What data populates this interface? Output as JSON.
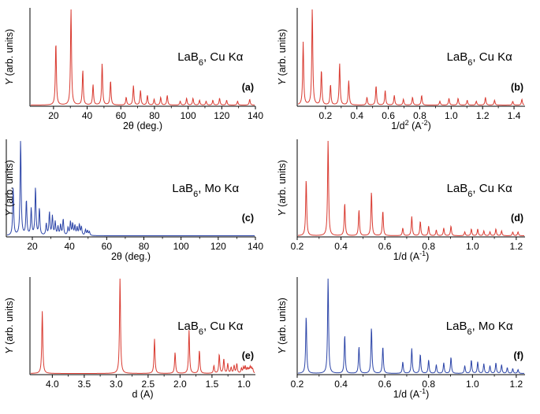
{
  "chart_data": [
    {
      "id": "a",
      "type": "line",
      "color": "#d93a30",
      "panel_label": "(a)",
      "annotation": {
        "main": "LaB",
        "sub": "6",
        "rest": ", Cu Kα"
      },
      "xlabel": {
        "main": "2θ (deg.)",
        "sup": ""
      },
      "ylabel": {
        "italic": "Y",
        "rest": " (arb. units)"
      },
      "xlim": [
        6,
        140
      ],
      "ylim": [
        0,
        1
      ],
      "xticks": [
        20,
        40,
        60,
        80,
        100,
        120,
        140
      ],
      "xtick_labels": [
        "20",
        "40",
        "60",
        "80",
        "100",
        "120",
        "140"
      ],
      "series": [
        {
          "peaks": [
            [
              21.4,
              0.65
            ],
            [
              30.4,
              1.0
            ],
            [
              37.4,
              0.36
            ],
            [
              43.5,
              0.21
            ],
            [
              48.9,
              0.43
            ],
            [
              53.9,
              0.25
            ],
            [
              63.2,
              0.08
            ],
            [
              67.5,
              0.2
            ],
            [
              71.7,
              0.15
            ],
            [
              75.8,
              0.1
            ],
            [
              79.8,
              0.06
            ],
            [
              83.7,
              0.08
            ],
            [
              87.6,
              0.1
            ],
            [
              95.3,
              0.04
            ],
            [
              99.1,
              0.07
            ],
            [
              102.9,
              0.07
            ],
            [
              106.8,
              0.05
            ],
            [
              110.7,
              0.04
            ],
            [
              114.7,
              0.05
            ],
            [
              118.7,
              0.07
            ],
            [
              122.9,
              0.05
            ],
            [
              129.4,
              0.04
            ],
            [
              136.6,
              0.06
            ]
          ]
        }
      ]
    },
    {
      "id": "b",
      "type": "line",
      "color": "#d93a30",
      "panel_label": "(b)",
      "annotation": {
        "main": "LaB",
        "sub": "6",
        "rest": ", Cu Kα"
      },
      "xlabel": {
        "main": "1/d",
        "sup": "2",
        "tail": " (A",
        "sup2": "-2",
        "end": ")"
      },
      "ylabel": {
        "italic": "Y",
        "rest": " (arb. units)"
      },
      "xlim": [
        0.02,
        1.47
      ],
      "ylim": [
        0,
        1
      ],
      "xticks": [
        0.2,
        0.4,
        0.6,
        0.8,
        1.0,
        1.2,
        1.4
      ],
      "xtick_labels": [
        "0.2",
        "0.4",
        "0.6",
        "0.8",
        "1.0",
        "1.2",
        "1.4"
      ],
      "series": [
        {
          "peaks": [
            [
              0.058,
              0.65
            ],
            [
              0.116,
              1.0
            ],
            [
              0.174,
              0.36
            ],
            [
              0.232,
              0.21
            ],
            [
              0.29,
              0.43
            ],
            [
              0.348,
              0.25
            ],
            [
              0.464,
              0.08
            ],
            [
              0.522,
              0.2
            ],
            [
              0.58,
              0.15
            ],
            [
              0.638,
              0.1
            ],
            [
              0.696,
              0.06
            ],
            [
              0.754,
              0.08
            ],
            [
              0.812,
              0.1
            ],
            [
              0.928,
              0.04
            ],
            [
              0.986,
              0.07
            ],
            [
              1.044,
              0.07
            ],
            [
              1.102,
              0.05
            ],
            [
              1.16,
              0.04
            ],
            [
              1.218,
              0.08
            ],
            [
              1.276,
              0.05
            ],
            [
              1.392,
              0.04
            ],
            [
              1.45,
              0.06
            ]
          ]
        }
      ]
    },
    {
      "id": "c",
      "type": "line",
      "color": "#2c45a8",
      "panel_label": "(c)",
      "annotation": {
        "main": "LaB",
        "sub": "6",
        "rest": ", Mo Kα"
      },
      "xlabel": {
        "main": "2θ (deg.)",
        "sup": ""
      },
      "ylabel": {
        "italic": "Y",
        "rest": " (arb. units)"
      },
      "xlim": [
        6,
        140
      ],
      "ylim": [
        0,
        1
      ],
      "xticks": [
        20,
        40,
        60,
        80,
        100,
        120,
        140
      ],
      "xtick_labels": [
        "20",
        "40",
        "60",
        "80",
        "100",
        "120",
        "140"
      ],
      "series": [
        {
          "peaks": [
            [
              9.7,
              0.5
            ],
            [
              13.7,
              1.0
            ],
            [
              16.8,
              0.37
            ],
            [
              19.4,
              0.28
            ],
            [
              21.7,
              0.5
            ],
            [
              23.8,
              0.28
            ],
            [
              27.5,
              0.12
            ],
            [
              29.2,
              0.24
            ],
            [
              30.8,
              0.2
            ],
            [
              32.3,
              0.14
            ],
            [
              33.8,
              0.09
            ],
            [
              35.2,
              0.11
            ],
            [
              36.6,
              0.17
            ],
            [
              39.2,
              0.08
            ],
            [
              40.5,
              0.14
            ],
            [
              41.7,
              0.12
            ],
            [
              42.9,
              0.1
            ],
            [
              44.1,
              0.08
            ],
            [
              45.3,
              0.11
            ],
            [
              46.4,
              0.09
            ],
            [
              48.6,
              0.06
            ],
            [
              49.7,
              0.05
            ],
            [
              50.7,
              0.04
            ]
          ]
        }
      ]
    },
    {
      "id": "d",
      "type": "line",
      "color": "#d93a30",
      "panel_label": "(d)",
      "annotation": {
        "main": "LaB",
        "sub": "6",
        "rest": ", Cu Kα"
      },
      "xlabel": {
        "main": "1/d",
        "sup": "",
        "tail": " (A",
        "sup2": "-1",
        "end": ")"
      },
      "ylabel": {
        "italic": "Y",
        "rest": " (arb. units)"
      },
      "xlim": [
        0.2,
        1.24
      ],
      "ylim": [
        0,
        1
      ],
      "xticks": [
        0.2,
        0.4,
        0.6,
        0.8,
        1.0,
        1.2
      ],
      "xtick_labels": [
        "0.2",
        "0.4",
        "0.6",
        "0.8",
        "1.0",
        "1.2"
      ],
      "series": [
        {
          "peaks": [
            [
              0.241,
              0.59
            ],
            [
              0.341,
              1.0
            ],
            [
              0.417,
              0.34
            ],
            [
              0.482,
              0.27
            ],
            [
              0.539,
              0.46
            ],
            [
              0.591,
              0.26
            ],
            [
              0.682,
              0.08
            ],
            [
              0.723,
              0.2
            ],
            [
              0.762,
              0.15
            ],
            [
              0.8,
              0.1
            ],
            [
              0.835,
              0.06
            ],
            [
              0.869,
              0.08
            ],
            [
              0.902,
              0.1
            ],
            [
              0.965,
              0.04
            ],
            [
              0.995,
              0.07
            ],
            [
              1.024,
              0.07
            ],
            [
              1.052,
              0.05
            ],
            [
              1.08,
              0.04
            ],
            [
              1.107,
              0.07
            ],
            [
              1.133,
              0.05
            ],
            [
              1.184,
              0.04
            ],
            [
              1.208,
              0.04
            ]
          ]
        }
      ]
    },
    {
      "id": "e",
      "type": "line",
      "color": "#d93a30",
      "panel_label": "(e)",
      "annotation": {
        "main": "LaB",
        "sub": "6",
        "rest": ", Cu Kα"
      },
      "xlabel": {
        "main": "d (A)",
        "sup": ""
      },
      "ylabel": {
        "italic": "Y",
        "rest": " (arb. units)"
      },
      "xlim": [
        4.35,
        0.82
      ],
      "ylim": [
        0,
        1
      ],
      "xticks": [
        4.0,
        3.5,
        3.0,
        2.5,
        2.0,
        1.5,
        1.0
      ],
      "xtick_labels": [
        "4.0",
        "3.5",
        "3.0",
        "2.5",
        "2.0",
        "1.5",
        "1.0"
      ],
      "series": [
        {
          "peaks": [
            [
              4.157,
              0.65
            ],
            [
              2.94,
              1.0
            ],
            [
              2.4,
              0.36
            ],
            [
              2.078,
              0.22
            ],
            [
              1.859,
              0.45
            ],
            [
              1.697,
              0.24
            ],
            [
              1.47,
              0.08
            ],
            [
              1.386,
              0.2
            ],
            [
              1.315,
              0.15
            ],
            [
              1.253,
              0.1
            ],
            [
              1.2,
              0.06
            ],
            [
              1.153,
              0.08
            ],
            [
              1.111,
              0.1
            ],
            [
              1.039,
              0.05
            ],
            [
              1.007,
              0.06
            ],
            [
              0.98,
              0.07
            ],
            [
              0.95,
              0.05
            ],
            [
              0.926,
              0.04
            ],
            [
              0.903,
              0.06
            ],
            [
              0.882,
              0.05
            ],
            [
              0.862,
              0.04
            ]
          ]
        }
      ]
    },
    {
      "id": "f",
      "type": "line",
      "color": "#2c45a8",
      "panel_label": "(f)",
      "annotation": {
        "main": "LaB",
        "sub": "6",
        "rest": ", Mo Kα"
      },
      "xlabel": {
        "main": "1/d",
        "sup": "",
        "tail": " (A",
        "sup2": "-1",
        "end": ")"
      },
      "ylabel": {
        "italic": "Y",
        "rest": " (arb. units)"
      },
      "xlim": [
        0.2,
        1.24
      ],
      "ylim": [
        0,
        1
      ],
      "xticks": [
        0.2,
        0.4,
        0.6,
        0.8,
        1.0,
        1.2
      ],
      "xtick_labels": [
        "0.2",
        "0.4",
        "0.6",
        "0.8",
        "1.0",
        "1.2"
      ],
      "series": [
        {
          "peaks": [
            [
              0.241,
              0.6
            ],
            [
              0.341,
              1.0
            ],
            [
              0.417,
              0.4
            ],
            [
              0.482,
              0.28
            ],
            [
              0.539,
              0.48
            ],
            [
              0.591,
              0.28
            ],
            [
              0.682,
              0.12
            ],
            [
              0.723,
              0.26
            ],
            [
              0.762,
              0.2
            ],
            [
              0.8,
              0.14
            ],
            [
              0.835,
              0.09
            ],
            [
              0.869,
              0.11
            ],
            [
              0.902,
              0.17
            ],
            [
              0.965,
              0.08
            ],
            [
              0.995,
              0.14
            ],
            [
              1.024,
              0.12
            ],
            [
              1.052,
              0.1
            ],
            [
              1.08,
              0.08
            ],
            [
              1.107,
              0.11
            ],
            [
              1.133,
              0.09
            ],
            [
              1.159,
              0.06
            ],
            [
              1.184,
              0.05
            ],
            [
              1.208,
              0.04
            ]
          ]
        }
      ]
    }
  ]
}
